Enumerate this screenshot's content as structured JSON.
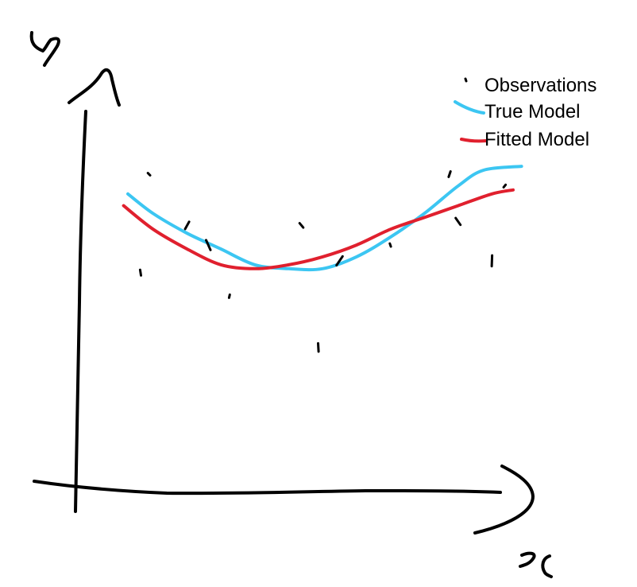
{
  "chart_data": {
    "type": "scatter",
    "xlabel": "x",
    "ylabel": "y",
    "grid": false,
    "legend_position": "top-right",
    "legend": [
      {
        "label": "Observations",
        "marker": "point",
        "color": "#000000"
      },
      {
        "label": "True Model",
        "marker": "line",
        "color": "#3cc6f2"
      },
      {
        "label": "Fitted Model",
        "marker": "line",
        "color": "#e0202e"
      }
    ],
    "series": [
      {
        "name": "Observations",
        "kind": "points",
        "color": "#000000",
        "points": [
          [
            0.17,
            0.8
          ],
          [
            0.15,
            0.55
          ],
          [
            0.26,
            0.67
          ],
          [
            0.31,
            0.62
          ],
          [
            0.36,
            0.49
          ],
          [
            0.53,
            0.67
          ],
          [
            0.57,
            0.36
          ],
          [
            0.62,
            0.58
          ],
          [
            0.74,
            0.62
          ],
          [
            0.88,
            0.8
          ],
          [
            0.9,
            0.68
          ],
          [
            0.98,
            0.58
          ],
          [
            1.01,
            0.77
          ]
        ]
      },
      {
        "name": "True Model",
        "kind": "line",
        "color": "#3cc6f2",
        "points": [
          [
            0.12,
            0.75
          ],
          [
            0.18,
            0.7
          ],
          [
            0.26,
            0.65
          ],
          [
            0.34,
            0.61
          ],
          [
            0.42,
            0.57
          ],
          [
            0.5,
            0.56
          ],
          [
            0.58,
            0.56
          ],
          [
            0.66,
            0.59
          ],
          [
            0.74,
            0.64
          ],
          [
            0.82,
            0.7
          ],
          [
            0.9,
            0.77
          ],
          [
            0.96,
            0.81
          ],
          [
            1.05,
            0.82
          ]
        ]
      },
      {
        "name": "Fitted Model",
        "kind": "line",
        "color": "#e0202e",
        "points": [
          [
            0.11,
            0.72
          ],
          [
            0.18,
            0.66
          ],
          [
            0.26,
            0.61
          ],
          [
            0.34,
            0.57
          ],
          [
            0.42,
            0.56
          ],
          [
            0.5,
            0.57
          ],
          [
            0.58,
            0.59
          ],
          [
            0.66,
            0.62
          ],
          [
            0.74,
            0.66
          ],
          [
            0.82,
            0.69
          ],
          [
            0.9,
            0.72
          ],
          [
            0.98,
            0.75
          ],
          [
            1.03,
            0.76
          ]
        ]
      }
    ]
  }
}
